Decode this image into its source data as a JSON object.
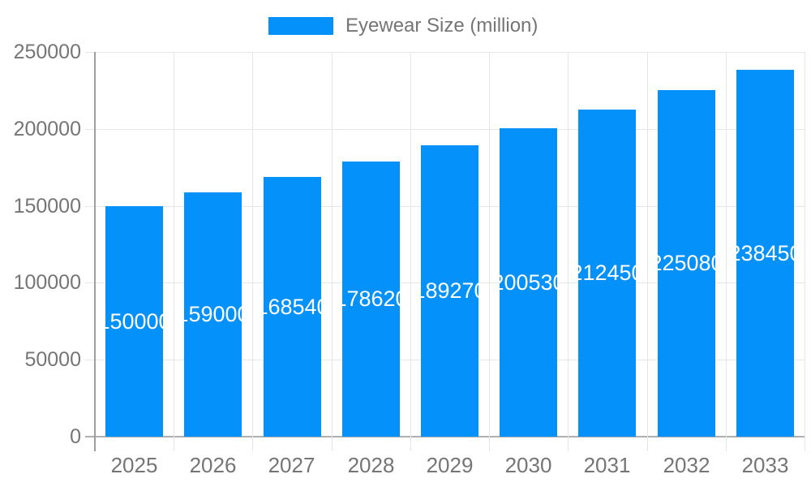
{
  "chart_data": {
    "type": "bar",
    "title": "",
    "legend": {
      "label": "Eyewear Size (million)",
      "position": "top-center"
    },
    "categories": [
      "2025",
      "2026",
      "2027",
      "2028",
      "2029",
      "2030",
      "2031",
      "2032",
      "2033"
    ],
    "series": [
      {
        "name": "Eyewear Size (million)",
        "values": [
          150000,
          159000,
          168540,
          178620,
          189270,
          200530,
          212450,
          225080,
          238450
        ]
      }
    ],
    "xlabel": "",
    "ylabel": "",
    "ylim": [
      0,
      250000
    ],
    "yticks": [
      0,
      50000,
      100000,
      150000,
      200000,
      250000
    ],
    "grid": "both",
    "data_labels": {
      "visible": true,
      "position": "center-inside"
    },
    "colors": {
      "bar": "#0591FA",
      "data_label": "#FFFFFF",
      "axis_label": "#757575",
      "legend_label": "#757575",
      "gridline": "#E6E6E6",
      "axis_line": "#9E9E9E",
      "baseline": "#B0B0B0",
      "background": "#FFFFFF"
    }
  }
}
